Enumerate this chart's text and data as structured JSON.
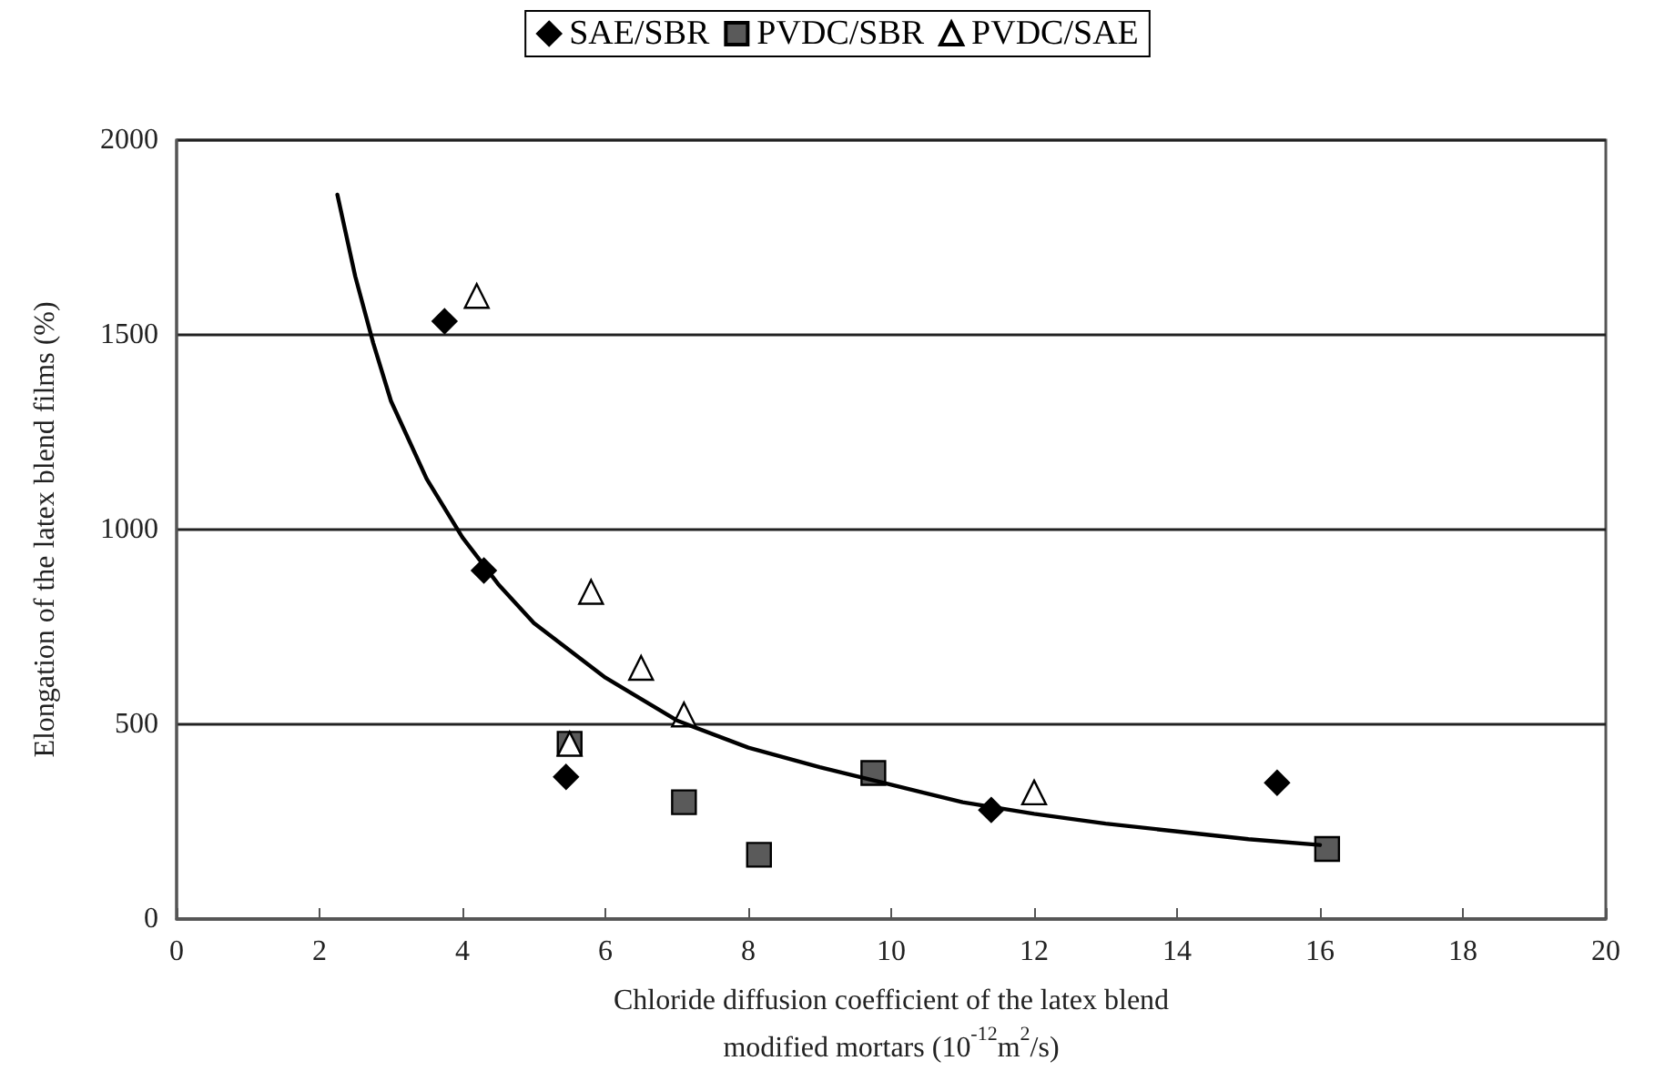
{
  "chart_data": {
    "type": "scatter",
    "xlabel": "Chloride diffusion coefficient of the latex blend\nmodified mortars (10$^{-12}$m$^{2}$/s)",
    "ylabel": "Elongation of the latex blend films (%)",
    "series": [
      {
        "name": "SAE/SBR",
        "color": "#000000",
        "marker": "diamond",
        "x": [
          3.75,
          4.3,
          5.45,
          11.4,
          15.4
        ],
        "values": [
          1535,
          895,
          365,
          280,
          350
        ]
      },
      {
        "name": "PVDC/SBR",
        "color": "#5a5a5a",
        "marker": "square",
        "x": [
          5.5,
          7.1,
          8.15,
          9.75,
          16.1
        ],
        "values": [
          450,
          300,
          165,
          375,
          180
        ]
      },
      {
        "name": "PVDC/SAE",
        "color": "#ffffff",
        "marker": "triangle",
        "x": [
          4.2,
          5.8,
          6.5,
          7.1,
          12,
          5.5
        ],
        "values": [
          1600,
          840,
          645,
          525,
          325,
          450
        ]
      },
      {
        "type": "line",
        "color": "#000000",
        "marker": "none",
        "line_style": "solid",
        "x": [
          2.25,
          2.5,
          2.75,
          3,
          3.5,
          4,
          4.5,
          5,
          6,
          7,
          8,
          9,
          10,
          11,
          12,
          13,
          14,
          15,
          16
        ],
        "values": [
          1860,
          1650,
          1480,
          1330,
          1130,
          980,
          860,
          760,
          620,
          510,
          440,
          390,
          345,
          300,
          270,
          245,
          225,
          205,
          190
        ]
      }
    ],
    "xlim": [
      0,
      20
    ],
    "xticks": [
      0,
      2,
      4,
      6,
      8,
      10,
      12,
      14,
      16,
      18,
      20
    ],
    "ylim": [
      0,
      2000
    ],
    "yticks": [
      0,
      500,
      1000,
      1500,
      2000
    ],
    "grid": "y",
    "legend": "top"
  }
}
